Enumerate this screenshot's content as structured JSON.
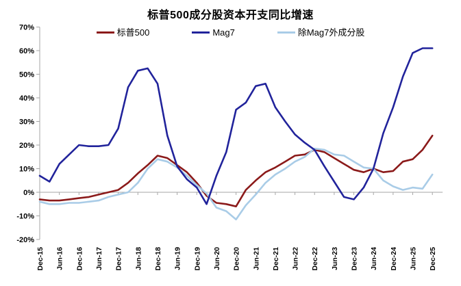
{
  "chart_data": {
    "type": "line",
    "title": "标普500成分股资本开支同比增速",
    "xlabel": "",
    "ylabel": "",
    "y_unit": "%",
    "ylim": [
      -20,
      70
    ],
    "y_tick_step": 10,
    "legend_position": "top",
    "grid": "zero-line-only",
    "axis_color": "#A6A6A6",
    "categories": [
      "Dec-15",
      "Mar-16",
      "Jun-16",
      "Sep-16",
      "Dec-16",
      "Mar-17",
      "Jun-17",
      "Sep-17",
      "Dec-17",
      "Mar-18",
      "Jun-18",
      "Sep-18",
      "Dec-18",
      "Mar-19",
      "Jun-19",
      "Sep-19",
      "Dec-19",
      "Mar-20",
      "Jun-20",
      "Sep-20",
      "Dec-20",
      "Mar-21",
      "Jun-21",
      "Sep-21",
      "Dec-21",
      "Mar-22",
      "Jun-22",
      "Sep-22",
      "Dec-22",
      "Mar-23",
      "Jun-23",
      "Sep-23",
      "Dec-23",
      "Mar-24",
      "Jun-24",
      "Sep-24",
      "Dec-24",
      "Mar-25",
      "Jun-25",
      "Sep-25",
      "Dec-25"
    ],
    "x_tick_every": 2,
    "series": [
      {
        "name": "标普500",
        "color": "#8B1A1A",
        "values": [
          -3,
          -3.5,
          -3.5,
          -3,
          -2.5,
          -2,
          -1,
          0,
          1,
          4,
          8,
          11.5,
          15.5,
          14.5,
          11.5,
          8.5,
          4,
          -1.5,
          -4.5,
          -5,
          -6,
          1,
          5,
          8.5,
          10.5,
          13,
          15.5,
          16,
          18,
          17,
          14.5,
          12,
          9.5,
          8.5,
          10,
          8.5,
          9,
          13,
          14,
          18,
          24
        ]
      },
      {
        "name": "Mag7",
        "color": "#21239B",
        "values": [
          7,
          4.5,
          12,
          16,
          20,
          19.5,
          19.5,
          20,
          27,
          44.5,
          51.5,
          52.5,
          46,
          24,
          11,
          5.5,
          2,
          -5,
          7,
          17,
          35,
          38,
          45,
          46,
          36,
          30,
          24.5,
          21,
          18,
          11,
          4.5,
          -2,
          -3,
          2,
          10,
          25,
          36,
          49,
          59,
          61,
          61
        ]
      },
      {
        "name": "除Mag7外成分股",
        "color": "#A9CCE7",
        "values": [
          -4,
          -5,
          -5,
          -4.5,
          -4.5,
          -4,
          -3.5,
          -2,
          -1,
          0,
          4,
          10,
          14,
          13,
          10.5,
          7,
          3,
          -0.5,
          -6.5,
          -8,
          -11.5,
          -5.5,
          -1,
          4,
          7.5,
          10,
          13,
          15,
          18.5,
          18,
          16,
          15.5,
          13,
          10.5,
          10,
          5,
          2.5,
          1,
          2,
          1.5,
          7.5
        ]
      }
    ]
  }
}
